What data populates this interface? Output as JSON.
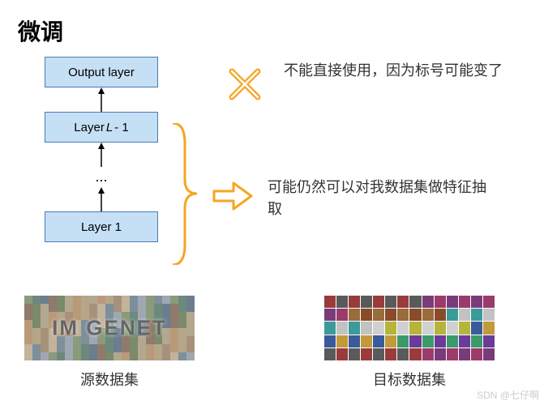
{
  "title": "微调",
  "layers": {
    "output": "Output layer",
    "lminus1_prefix": "Layer ",
    "lminus1_mid": "L",
    "lminus1_suffix": " - 1",
    "dots": "...",
    "layer1": "Layer 1",
    "box_fill": "#c5dff5",
    "box_border": "#4a7cb5",
    "arrow_color": "#000000"
  },
  "annotations": {
    "x_text": "不能直接使用，因为标号可能变了",
    "arrow_text": "可能仍然可以对我数据集做特征抽取",
    "icon_color": "#f5a623",
    "text_color": "#333333",
    "font_size": 18
  },
  "datasets": {
    "source_label": "源数据集",
    "source_overlay": "IM GENET",
    "target_label": "目标数据集"
  },
  "watermark": "SDN @七仔啊",
  "mosaic_palette_a": [
    "#8a9a7b",
    "#b5a68a",
    "#6b7d8f",
    "#c2b39a",
    "#7a8a6b",
    "#9fa8b2",
    "#b89a7a",
    "#6b8a7d",
    "#a8917a",
    "#8f7a6b",
    "#7d8f9a",
    "#b2a88f"
  ],
  "mosaic_palette_b": [
    "#9a3b3b",
    "#3b5a9a",
    "#c2c2c2",
    "#7a3b7a",
    "#3b9a6b",
    "#b5b53b",
    "#9a6b3b",
    "#5a5a5a",
    "#c29a3b",
    "#3b9a9a",
    "#9a3b6b",
    "#6b3b9a",
    "#d0d0d0",
    "#8a4b2b"
  ]
}
